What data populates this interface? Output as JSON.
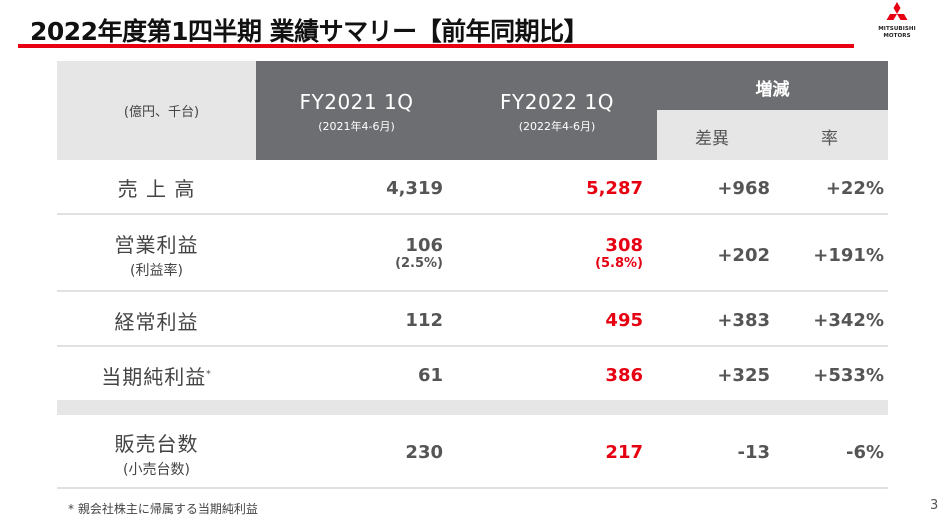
{
  "title": "2022年度第1四半期 業績サマリー【前年同期比】",
  "logo": {
    "line1": "MITSUBISHI",
    "line2": "MOTORS"
  },
  "accent_color": "#e60012",
  "table": {
    "unit_label": "(億円、千台)",
    "columns": [
      {
        "label": "FY2021 1Q",
        "period": "(2021年4-6月)"
      },
      {
        "label": "FY2022 1Q",
        "period": "(2022年4-6月)"
      }
    ],
    "change_header": "増減",
    "change_sub": {
      "diff": "差異",
      "rate": "率"
    },
    "rows": [
      {
        "label": "売 上 高",
        "sublabel": "",
        "fy2021": "4,319",
        "fy2021_sub": "",
        "fy2022": "5,287",
        "fy2022_sub": "",
        "diff": "+968",
        "rate": "+22%"
      },
      {
        "label": "営業利益",
        "sublabel": "(利益率)",
        "fy2021": "106",
        "fy2021_sub": "(2.5%)",
        "fy2022": "308",
        "fy2022_sub": "(5.8%)",
        "diff": "+202",
        "rate": "+191%"
      },
      {
        "label": "経常利益",
        "sublabel": "",
        "fy2021": "112",
        "fy2021_sub": "",
        "fy2022": "495",
        "fy2022_sub": "",
        "diff": "+383",
        "rate": "+342%"
      },
      {
        "label": "当期純利益",
        "label_mark": "*",
        "sublabel": "",
        "fy2021": "61",
        "fy2021_sub": "",
        "fy2022": "386",
        "fy2022_sub": "",
        "diff": "+325",
        "rate": "+533%"
      },
      {
        "label": "販売台数",
        "sublabel": "(小売台数)",
        "fy2021": "230",
        "fy2021_sub": "",
        "fy2022": "217",
        "fy2022_sub": "",
        "diff": "-13",
        "rate": "-6%"
      }
    ]
  },
  "footnote": "* 親会社株主に帰属する当期純利益",
  "page_number": "3"
}
